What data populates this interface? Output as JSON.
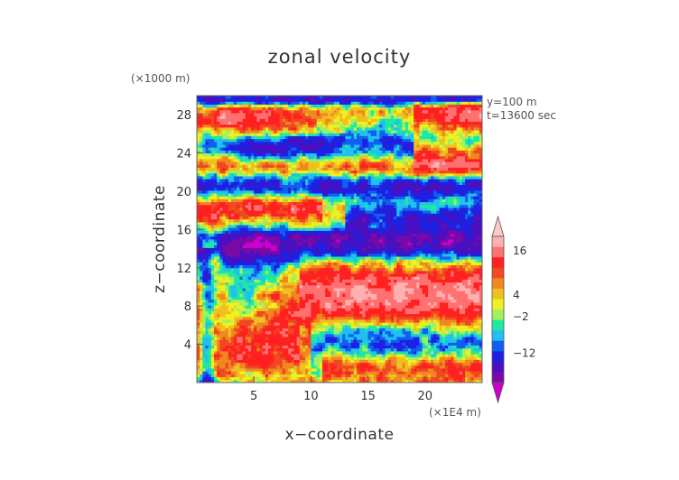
{
  "chart_data": {
    "type": "heatmap",
    "title": "zonal velocity",
    "xlabel": "x−coordinate",
    "ylabel": "z−coordinate",
    "x_unit": "(×1E4 m)",
    "y_unit": "(×1000 m)",
    "annotations": [
      "y=100 m",
      "t=13600 sec"
    ],
    "xlim": [
      0,
      25
    ],
    "ylim": [
      0,
      30
    ],
    "x_ticks": [
      5,
      10,
      15,
      20
    ],
    "y_ticks": [
      4,
      8,
      12,
      16,
      20,
      24,
      28
    ],
    "x_tick_labels": [
      "5",
      "10",
      "15",
      "20"
    ],
    "y_tick_labels": [
      "4",
      "8",
      "12",
      "16",
      "20",
      "24",
      "28"
    ],
    "colorbar": {
      "levels": [
        -20,
        -16,
        -12,
        -8,
        -6,
        -4,
        -2,
        0,
        2,
        4,
        6,
        8,
        12,
        16,
        20
      ],
      "colors": [
        "#cc00cc",
        "#7a0aa8",
        "#4a10c0",
        "#2020e0",
        "#1060f0",
        "#20c0f0",
        "#20e8a0",
        "#a0f060",
        "#f0f020",
        "#f0c020",
        "#f08820",
        "#f04820",
        "#ff2020",
        "#ff7070",
        "#ffb0b0",
        "#ffc8c8"
      ],
      "tick_values": [
        16,
        4,
        -2,
        -12
      ],
      "tick_labels": [
        "16",
        "4",
        "−2",
        "−12"
      ]
    },
    "grid": false,
    "legend": "colorbar-right"
  }
}
